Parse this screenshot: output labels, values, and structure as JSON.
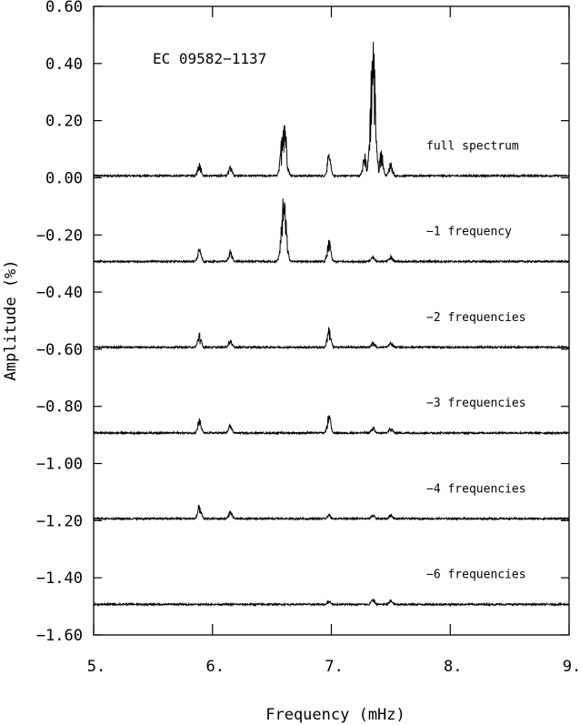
{
  "chart_data": {
    "type": "line",
    "title": "EC 09582−1137",
    "xlabel": "Frequency (mHz)",
    "ylabel": "Amplitude (%)",
    "xlim": [
      5.0,
      9.0
    ],
    "ylim": [
      -1.6,
      0.6
    ],
    "x_ticks": [
      5.0,
      6.0,
      7.0,
      8.0,
      9.0
    ],
    "x_tick_labels": [
      "5.",
      "6.",
      "7.",
      "8.",
      "9."
    ],
    "y_ticks": [
      0.6,
      0.4,
      0.2,
      0.0,
      -0.2,
      -0.4,
      -0.6,
      -0.8,
      -1.0,
      -1.2,
      -1.4,
      -1.6
    ],
    "y_tick_labels": [
      "0.60",
      "0.40",
      "0.20",
      "0.00",
      "−0.20",
      "−0.40",
      "−0.60",
      "−0.80",
      "−1.00",
      "−1.20",
      "−1.40",
      "−1.60"
    ],
    "grid": false,
    "series": [
      {
        "name": "full spectrum",
        "baseline": 0.0,
        "peaks": [
          {
            "x": 5.89,
            "amplitude": 0.05
          },
          {
            "x": 6.15,
            "amplitude": 0.04
          },
          {
            "x": 6.6,
            "amplitude": 0.24
          },
          {
            "x": 6.98,
            "amplitude": 0.08
          },
          {
            "x": 7.28,
            "amplitude": 0.08
          },
          {
            "x": 7.35,
            "amplitude": 0.52
          },
          {
            "x": 7.42,
            "amplitude": 0.1
          },
          {
            "x": 7.5,
            "amplitude": 0.05
          }
        ]
      },
      {
        "name": "−1 frequency",
        "baseline": -0.3,
        "peaks": [
          {
            "x": 5.89,
            "amplitude": 0.05
          },
          {
            "x": 6.15,
            "amplitude": 0.04
          },
          {
            "x": 6.6,
            "amplitude": 0.24
          },
          {
            "x": 6.98,
            "amplitude": 0.08
          },
          {
            "x": 7.35,
            "amplitude": 0.02
          },
          {
            "x": 7.5,
            "amplitude": 0.02
          }
        ]
      },
      {
        "name": "−2 frequencies",
        "baseline": -0.6,
        "peaks": [
          {
            "x": 5.89,
            "amplitude": 0.05
          },
          {
            "x": 6.15,
            "amplitude": 0.03
          },
          {
            "x": 6.98,
            "amplitude": 0.08
          },
          {
            "x": 7.35,
            "amplitude": 0.02
          },
          {
            "x": 7.5,
            "amplitude": 0.02
          }
        ]
      },
      {
        "name": "−3 frequencies",
        "baseline": -0.9,
        "peaks": [
          {
            "x": 5.89,
            "amplitude": 0.05
          },
          {
            "x": 6.15,
            "amplitude": 0.03
          },
          {
            "x": 6.98,
            "amplitude": 0.07
          },
          {
            "x": 7.35,
            "amplitude": 0.02
          },
          {
            "x": 7.5,
            "amplitude": 0.02
          }
        ]
      },
      {
        "name": "−4 frequencies",
        "baseline": -1.2,
        "peaks": [
          {
            "x": 5.89,
            "amplitude": 0.05
          },
          {
            "x": 6.15,
            "amplitude": 0.03
          },
          {
            "x": 6.98,
            "amplitude": 0.015
          },
          {
            "x": 7.35,
            "amplitude": 0.015
          },
          {
            "x": 7.5,
            "amplitude": 0.015
          }
        ]
      },
      {
        "name": "−6 frequencies",
        "baseline": -1.5,
        "peaks": [
          {
            "x": 6.98,
            "amplitude": 0.015
          },
          {
            "x": 7.35,
            "amplitude": 0.02
          },
          {
            "x": 7.5,
            "amplitude": 0.015
          }
        ]
      }
    ]
  }
}
